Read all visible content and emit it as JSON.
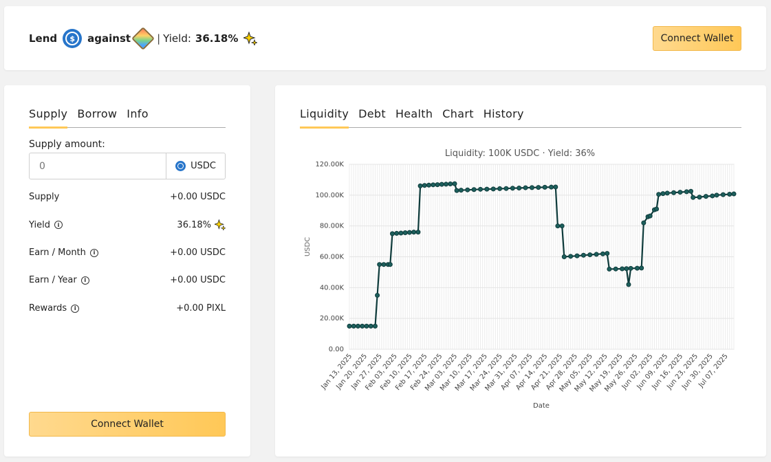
{
  "header": {
    "lend_label": "Lend",
    "usdc_symbol": "$",
    "against_label": "against",
    "separator": "|",
    "yield_label": "Yield:",
    "yield_value": "36.18%",
    "connect_wallet": "Connect Wallet",
    "icons": [
      "usdc-coin-icon",
      "nft-collection-icon",
      "sparkle-icon"
    ]
  },
  "left_panel": {
    "tabs": [
      {
        "label": "Supply",
        "active": true
      },
      {
        "label": "Borrow",
        "active": false
      },
      {
        "label": "Info",
        "active": false
      }
    ],
    "supply_amount_label": "Supply amount:",
    "input_placeholder": "0",
    "input_value": "",
    "unit": "USDC",
    "rows": [
      {
        "label": "Supply",
        "value": "+0.00 USDC",
        "info": false
      },
      {
        "label": "Yield",
        "value": "36.18%",
        "info": true,
        "sparkle": true
      },
      {
        "label": "Earn / Month",
        "value": "+0.00 USDC",
        "info": true
      },
      {
        "label": "Earn / Year",
        "value": "+0.00 USDC",
        "info": true
      },
      {
        "label": "Rewards",
        "value": "+0.00 PIXL",
        "info": true
      }
    ],
    "connect_wallet": "Connect Wallet"
  },
  "right_panel": {
    "tabs": [
      {
        "label": "Liquidity",
        "active": true
      },
      {
        "label": "Debt",
        "active": false
      },
      {
        "label": "Health",
        "active": false
      },
      {
        "label": "Chart",
        "active": false
      },
      {
        "label": "History",
        "active": false
      }
    ]
  },
  "chart_data": {
    "type": "line",
    "title": "Liquidity: 100K USDC · Yield: 36%",
    "xlabel": "Date",
    "ylabel": "USDC",
    "ylim": [
      0,
      120000
    ],
    "y_ticks": [
      "0.00",
      "20.00K",
      "40.00K",
      "60.00K",
      "80.00K",
      "100.00K",
      "120.00K"
    ],
    "x_range": [
      "2025-01-13",
      "2025-07-11"
    ],
    "x_ticks": [
      "Jan 13, 2025",
      "Jan 20, 2025",
      "Jan 27, 2025",
      "Feb 03, 2025",
      "Feb 10, 2025",
      "Feb 17, 2025",
      "Feb 24, 2025",
      "Mar 03, 2025",
      "Mar 10, 2025",
      "Mar 17, 2025",
      "Mar 24, 2025",
      "Mar 31, 2025",
      "Apr 07, 2025",
      "Apr 14, 2025",
      "Apr 21, 2025",
      "Apr 28, 2025",
      "May 05, 2025",
      "May 12, 2025",
      "May 19, 2025",
      "May 26, 2025",
      "Jun 02, 2025",
      "Jun 09, 2025",
      "Jun 16, 2025",
      "Jun 23, 2025",
      "Jun 30, 2025",
      "Jul 07, 2025"
    ],
    "grid": true,
    "line_color": "#0e3b3b",
    "series": [
      {
        "points": [
          [
            "2025-01-13",
            15000
          ],
          [
            "2025-01-15",
            15000
          ],
          [
            "2025-01-17",
            15000
          ],
          [
            "2025-01-19",
            15000
          ],
          [
            "2025-01-21",
            15000
          ],
          [
            "2025-01-23",
            15000
          ],
          [
            "2025-01-25",
            15000
          ],
          [
            "2025-01-26",
            35000
          ],
          [
            "2025-01-27",
            55000
          ],
          [
            "2025-01-29",
            55000
          ],
          [
            "2025-01-31",
            55000
          ],
          [
            "2025-02-01",
            55000
          ],
          [
            "2025-02-02",
            75000
          ],
          [
            "2025-02-04",
            75200
          ],
          [
            "2025-02-06",
            75400
          ],
          [
            "2025-02-08",
            75600
          ],
          [
            "2025-02-10",
            75800
          ],
          [
            "2025-02-12",
            76000
          ],
          [
            "2025-02-14",
            76000
          ],
          [
            "2025-02-15",
            106000
          ],
          [
            "2025-02-17",
            106300
          ],
          [
            "2025-02-19",
            106500
          ],
          [
            "2025-02-21",
            106700
          ],
          [
            "2025-02-23",
            106800
          ],
          [
            "2025-02-25",
            107000
          ],
          [
            "2025-02-27",
            107100
          ],
          [
            "2025-03-01",
            107300
          ],
          [
            "2025-03-03",
            107400
          ],
          [
            "2025-03-04",
            103000
          ],
          [
            "2025-03-06",
            103200
          ],
          [
            "2025-03-09",
            103400
          ],
          [
            "2025-03-12",
            103600
          ],
          [
            "2025-03-15",
            103800
          ],
          [
            "2025-03-18",
            103900
          ],
          [
            "2025-03-21",
            104000
          ],
          [
            "2025-03-24",
            104200
          ],
          [
            "2025-03-27",
            104300
          ],
          [
            "2025-03-30",
            104500
          ],
          [
            "2025-04-02",
            104600
          ],
          [
            "2025-04-05",
            104800
          ],
          [
            "2025-04-08",
            104900
          ],
          [
            "2025-04-11",
            105000
          ],
          [
            "2025-04-14",
            105100
          ],
          [
            "2025-04-17",
            105200
          ],
          [
            "2025-04-19",
            105300
          ],
          [
            "2025-04-20",
            80000
          ],
          [
            "2025-04-22",
            80000
          ],
          [
            "2025-04-23",
            60000
          ],
          [
            "2025-04-26",
            60300
          ],
          [
            "2025-04-29",
            60600
          ],
          [
            "2025-05-02",
            61000
          ],
          [
            "2025-05-05",
            61300
          ],
          [
            "2025-05-08",
            61600
          ],
          [
            "2025-05-11",
            61900
          ],
          [
            "2025-05-13",
            62200
          ],
          [
            "2025-05-14",
            52000
          ],
          [
            "2025-05-17",
            52100
          ],
          [
            "2025-05-20",
            52200
          ],
          [
            "2025-05-22",
            52300
          ],
          [
            "2025-05-23",
            42000
          ],
          [
            "2025-05-24",
            52500
          ],
          [
            "2025-05-27",
            52600
          ],
          [
            "2025-05-29",
            52700
          ],
          [
            "2025-05-30",
            82000
          ],
          [
            "2025-06-01",
            86000
          ],
          [
            "2025-06-02",
            86500
          ],
          [
            "2025-06-04",
            90500
          ],
          [
            "2025-06-05",
            91000
          ],
          [
            "2025-06-06",
            100500
          ],
          [
            "2025-06-08",
            101000
          ],
          [
            "2025-06-10",
            101300
          ],
          [
            "2025-06-13",
            101600
          ],
          [
            "2025-06-16",
            101900
          ],
          [
            "2025-06-19",
            102200
          ],
          [
            "2025-06-21",
            102500
          ],
          [
            "2025-06-22",
            98500
          ],
          [
            "2025-06-25",
            98700
          ],
          [
            "2025-06-28",
            99200
          ],
          [
            "2025-07-01",
            99500
          ],
          [
            "2025-07-03",
            100000
          ],
          [
            "2025-07-06",
            100300
          ],
          [
            "2025-07-09",
            100600
          ],
          [
            "2025-07-11",
            100800
          ]
        ]
      }
    ]
  }
}
